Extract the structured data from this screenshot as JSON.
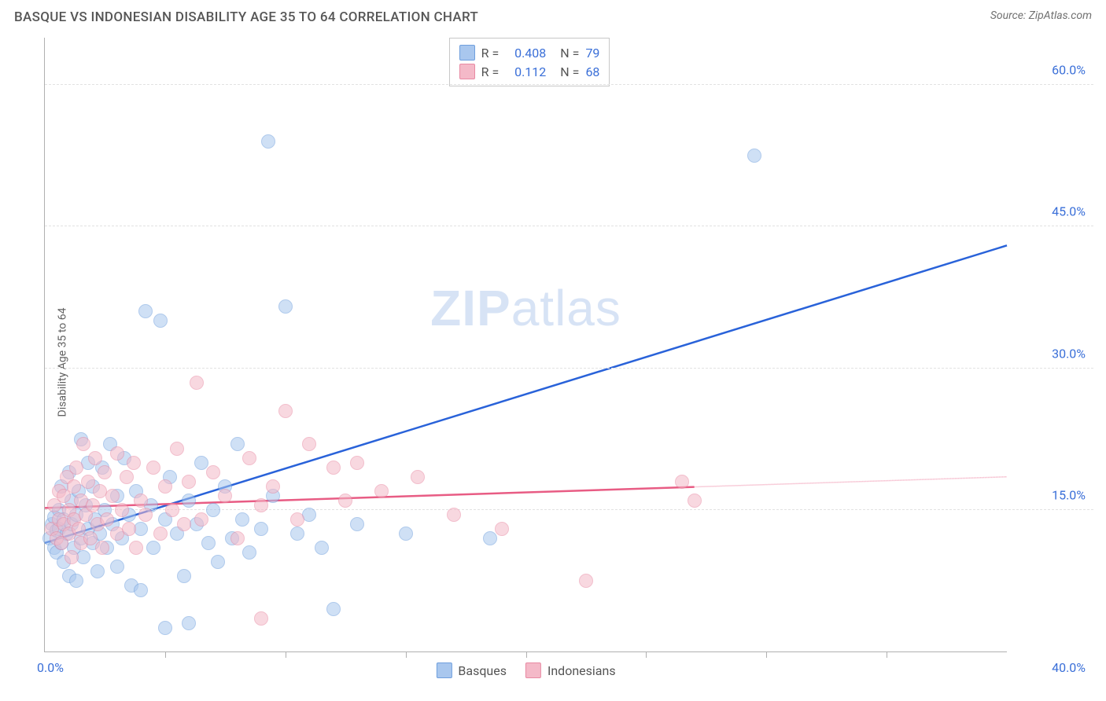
{
  "title": "BASQUE VS INDONESIAN DISABILITY AGE 35 TO 64 CORRELATION CHART",
  "source_label": "Source:",
  "source_name": "ZipAtlas.com",
  "ylabel": "Disability Age 35 to 64",
  "watermark_a": "ZIP",
  "watermark_b": "atlas",
  "chart": {
    "type": "scatter",
    "xlim": [
      0,
      40
    ],
    "ylim": [
      0,
      65
    ],
    "x_tick_label_left": "0.0%",
    "x_tick_label_right": "40.0%",
    "x_minor_ticks": [
      5,
      10,
      15,
      20,
      25,
      30,
      35
    ],
    "y_grid": [
      15,
      30,
      45,
      60
    ],
    "y_grid_labels": [
      "15.0%",
      "30.0%",
      "45.0%",
      "60.0%"
    ],
    "background_color": "#ffffff",
    "grid_color": "#e2e2e2",
    "axis_color": "#b0b0b0",
    "tick_label_color": "#3a6fd8",
    "series": [
      {
        "name": "Basques",
        "fill": "#a9c7ee",
        "stroke": "#6f9fdd",
        "trend_color": "#2962d9",
        "trend": {
          "x1": 0,
          "y1": 11.5,
          "x2": 40,
          "y2": 43.0
        },
        "trend_solid_until": 40,
        "r_value": "0.408",
        "n_value": "79",
        "marker_radius": 9,
        "marker_opacity": 0.55,
        "points": [
          [
            0.2,
            12.0
          ],
          [
            0.3,
            13.5
          ],
          [
            0.4,
            11.0
          ],
          [
            0.4,
            14.2
          ],
          [
            0.5,
            12.8
          ],
          [
            0.5,
            10.5
          ],
          [
            0.6,
            13.0
          ],
          [
            0.6,
            15.0
          ],
          [
            0.7,
            11.5
          ],
          [
            0.7,
            17.5
          ],
          [
            0.8,
            14.0
          ],
          [
            0.8,
            9.5
          ],
          [
            0.9,
            12.5
          ],
          [
            1.0,
            19.0
          ],
          [
            1.0,
            8.0
          ],
          [
            1.1,
            13.5
          ],
          [
            1.1,
            16.0
          ],
          [
            1.2,
            11.0
          ],
          [
            1.3,
            14.5
          ],
          [
            1.3,
            7.5
          ],
          [
            1.4,
            17.0
          ],
          [
            1.5,
            12.0
          ],
          [
            1.5,
            22.5
          ],
          [
            1.6,
            10.0
          ],
          [
            1.7,
            15.5
          ],
          [
            1.8,
            13.0
          ],
          [
            1.8,
            20.0
          ],
          [
            2.0,
            11.5
          ],
          [
            2.0,
            17.5
          ],
          [
            2.1,
            14.0
          ],
          [
            2.2,
            8.5
          ],
          [
            2.3,
            12.5
          ],
          [
            2.4,
            19.5
          ],
          [
            2.5,
            15.0
          ],
          [
            2.6,
            11.0
          ],
          [
            2.7,
            22.0
          ],
          [
            2.8,
            13.5
          ],
          [
            3.0,
            16.5
          ],
          [
            3.0,
            9.0
          ],
          [
            3.2,
            12.0
          ],
          [
            3.3,
            20.5
          ],
          [
            3.5,
            14.5
          ],
          [
            3.6,
            7.0
          ],
          [
            3.8,
            17.0
          ],
          [
            4.0,
            13.0
          ],
          [
            4.0,
            6.5
          ],
          [
            4.2,
            36.0
          ],
          [
            4.4,
            15.5
          ],
          [
            4.5,
            11.0
          ],
          [
            4.8,
            35.0
          ],
          [
            5.0,
            14.0
          ],
          [
            5.0,
            2.5
          ],
          [
            5.2,
            18.5
          ],
          [
            5.5,
            12.5
          ],
          [
            5.8,
            8.0
          ],
          [
            6.0,
            16.0
          ],
          [
            6.0,
            3.0
          ],
          [
            6.3,
            13.5
          ],
          [
            6.5,
            20.0
          ],
          [
            6.8,
            11.5
          ],
          [
            7.0,
            15.0
          ],
          [
            7.2,
            9.5
          ],
          [
            7.5,
            17.5
          ],
          [
            7.8,
            12.0
          ],
          [
            8.0,
            22.0
          ],
          [
            8.2,
            14.0
          ],
          [
            8.5,
            10.5
          ],
          [
            9.0,
            13.0
          ],
          [
            9.3,
            54.0
          ],
          [
            9.5,
            16.5
          ],
          [
            10.0,
            36.5
          ],
          [
            10.5,
            12.5
          ],
          [
            11.0,
            14.5
          ],
          [
            11.5,
            11.0
          ],
          [
            12.0,
            4.5
          ],
          [
            13.0,
            13.5
          ],
          [
            15.0,
            12.5
          ],
          [
            18.5,
            12.0
          ],
          [
            29.5,
            52.5
          ]
        ]
      },
      {
        "name": "Indonesians",
        "fill": "#f4b9c8",
        "stroke": "#e88aa3",
        "trend_color": "#e85c84",
        "trend": {
          "x1": 0,
          "y1": 15.2,
          "x2": 40,
          "y2": 18.5
        },
        "trend_solid_until": 27,
        "r_value": "0.112",
        "n_value": "68",
        "marker_radius": 9,
        "marker_opacity": 0.55,
        "points": [
          [
            0.3,
            13.0
          ],
          [
            0.4,
            15.5
          ],
          [
            0.5,
            12.0
          ],
          [
            0.6,
            17.0
          ],
          [
            0.6,
            14.0
          ],
          [
            0.7,
            11.5
          ],
          [
            0.8,
            16.5
          ],
          [
            0.8,
            13.5
          ],
          [
            0.9,
            18.5
          ],
          [
            1.0,
            12.5
          ],
          [
            1.0,
            15.0
          ],
          [
            1.1,
            10.0
          ],
          [
            1.2,
            17.5
          ],
          [
            1.2,
            14.0
          ],
          [
            1.3,
            19.5
          ],
          [
            1.4,
            13.0
          ],
          [
            1.5,
            16.0
          ],
          [
            1.5,
            11.5
          ],
          [
            1.6,
            22.0
          ],
          [
            1.7,
            14.5
          ],
          [
            1.8,
            18.0
          ],
          [
            1.9,
            12.0
          ],
          [
            2.0,
            15.5
          ],
          [
            2.1,
            20.5
          ],
          [
            2.2,
            13.5
          ],
          [
            2.3,
            17.0
          ],
          [
            2.4,
            11.0
          ],
          [
            2.5,
            19.0
          ],
          [
            2.6,
            14.0
          ],
          [
            2.8,
            16.5
          ],
          [
            3.0,
            12.5
          ],
          [
            3.0,
            21.0
          ],
          [
            3.2,
            15.0
          ],
          [
            3.4,
            18.5
          ],
          [
            3.5,
            13.0
          ],
          [
            3.7,
            20.0
          ],
          [
            3.8,
            11.0
          ],
          [
            4.0,
            16.0
          ],
          [
            4.2,
            14.5
          ],
          [
            4.5,
            19.5
          ],
          [
            4.8,
            12.5
          ],
          [
            5.0,
            17.5
          ],
          [
            5.3,
            15.0
          ],
          [
            5.5,
            21.5
          ],
          [
            5.8,
            13.5
          ],
          [
            6.0,
            18.0
          ],
          [
            6.3,
            28.5
          ],
          [
            6.5,
            14.0
          ],
          [
            7.0,
            19.0
          ],
          [
            7.5,
            16.5
          ],
          [
            8.0,
            12.0
          ],
          [
            8.5,
            20.5
          ],
          [
            9.0,
            3.5
          ],
          [
            9.0,
            15.5
          ],
          [
            9.5,
            17.5
          ],
          [
            10.0,
            25.5
          ],
          [
            10.5,
            14.0
          ],
          [
            11.0,
            22.0
          ],
          [
            12.0,
            19.5
          ],
          [
            12.5,
            16.0
          ],
          [
            13.0,
            20.0
          ],
          [
            14.0,
            17.0
          ],
          [
            15.5,
            18.5
          ],
          [
            17.0,
            14.5
          ],
          [
            19.0,
            13.0
          ],
          [
            22.5,
            7.5
          ],
          [
            26.5,
            18.0
          ],
          [
            27.0,
            16.0
          ]
        ]
      }
    ]
  },
  "statbox": {
    "r_label": "R =",
    "n_label": "N ="
  },
  "bottom_legend": {
    "series1": "Basques",
    "series2": "Indonesians"
  }
}
